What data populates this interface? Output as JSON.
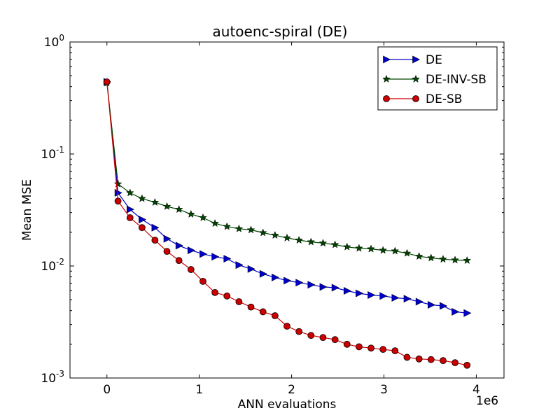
{
  "chart_data": {
    "type": "line",
    "title": "autoenc-spiral (DE)",
    "xlabel": "ANN evaluations",
    "ylabel": "Mean MSE",
    "x_offset_label": "1e6",
    "xlim": [
      -0.4,
      4.3
    ],
    "ylim": [
      0.001,
      1
    ],
    "yscale": "log",
    "xticks": [
      0,
      1,
      2,
      3,
      4
    ],
    "xtick_labels": [
      "0",
      "1",
      "2",
      "3",
      "4"
    ],
    "yticks": [
      {
        "value": 1,
        "base": "10",
        "exp": "0"
      },
      {
        "value": 0.1,
        "base": "10",
        "exp": "-1"
      },
      {
        "value": 0.01,
        "base": "10",
        "exp": "-2"
      },
      {
        "value": 0.001,
        "base": "10",
        "exp": "-3"
      }
    ],
    "legend_position": "top-right",
    "x": [
      0,
      0.12,
      0.25,
      0.38,
      0.52,
      0.65,
      0.78,
      0.91,
      1.04,
      1.17,
      1.3,
      1.43,
      1.56,
      1.69,
      1.82,
      1.95,
      2.08,
      2.21,
      2.34,
      2.47,
      2.6,
      2.73,
      2.86,
      2.99,
      3.12,
      3.25,
      3.38,
      3.51,
      3.64,
      3.77,
      3.9
    ],
    "series": [
      {
        "name": "DE",
        "color": "#0000cc",
        "marker": "triangle-right",
        "values": [
          0.44,
          0.045,
          0.032,
          0.026,
          0.022,
          0.0175,
          0.0152,
          0.0138,
          0.0128,
          0.0121,
          0.0116,
          0.0102,
          0.0094,
          0.0085,
          0.0079,
          0.0074,
          0.0071,
          0.0068,
          0.0065,
          0.0064,
          0.006,
          0.0057,
          0.0055,
          0.0054,
          0.0052,
          0.0051,
          0.0048,
          0.0045,
          0.0044,
          0.0039,
          0.0038
        ]
      },
      {
        "name": "DE-INV-SB",
        "color": "#004400",
        "marker": "star",
        "values": [
          0.43,
          0.054,
          0.045,
          0.04,
          0.037,
          0.034,
          0.032,
          0.029,
          0.027,
          0.024,
          0.0225,
          0.0215,
          0.021,
          0.0198,
          0.0188,
          0.0178,
          0.017,
          0.0164,
          0.016,
          0.0155,
          0.0148,
          0.0144,
          0.0142,
          0.0138,
          0.0136,
          0.013,
          0.0122,
          0.0118,
          0.0115,
          0.0113,
          0.0112
        ]
      },
      {
        "name": "DE-SB",
        "color": "#cc0000",
        "marker": "circle",
        "values": [
          0.44,
          0.038,
          0.027,
          0.022,
          0.017,
          0.0135,
          0.0112,
          0.0093,
          0.0073,
          0.0058,
          0.0054,
          0.0048,
          0.0043,
          0.0039,
          0.0036,
          0.0029,
          0.0026,
          0.0024,
          0.0023,
          0.0022,
          0.002,
          0.0019,
          0.00185,
          0.0018,
          0.00175,
          0.00153,
          0.00148,
          0.00146,
          0.00143,
          0.00137,
          0.0013
        ]
      }
    ]
  }
}
